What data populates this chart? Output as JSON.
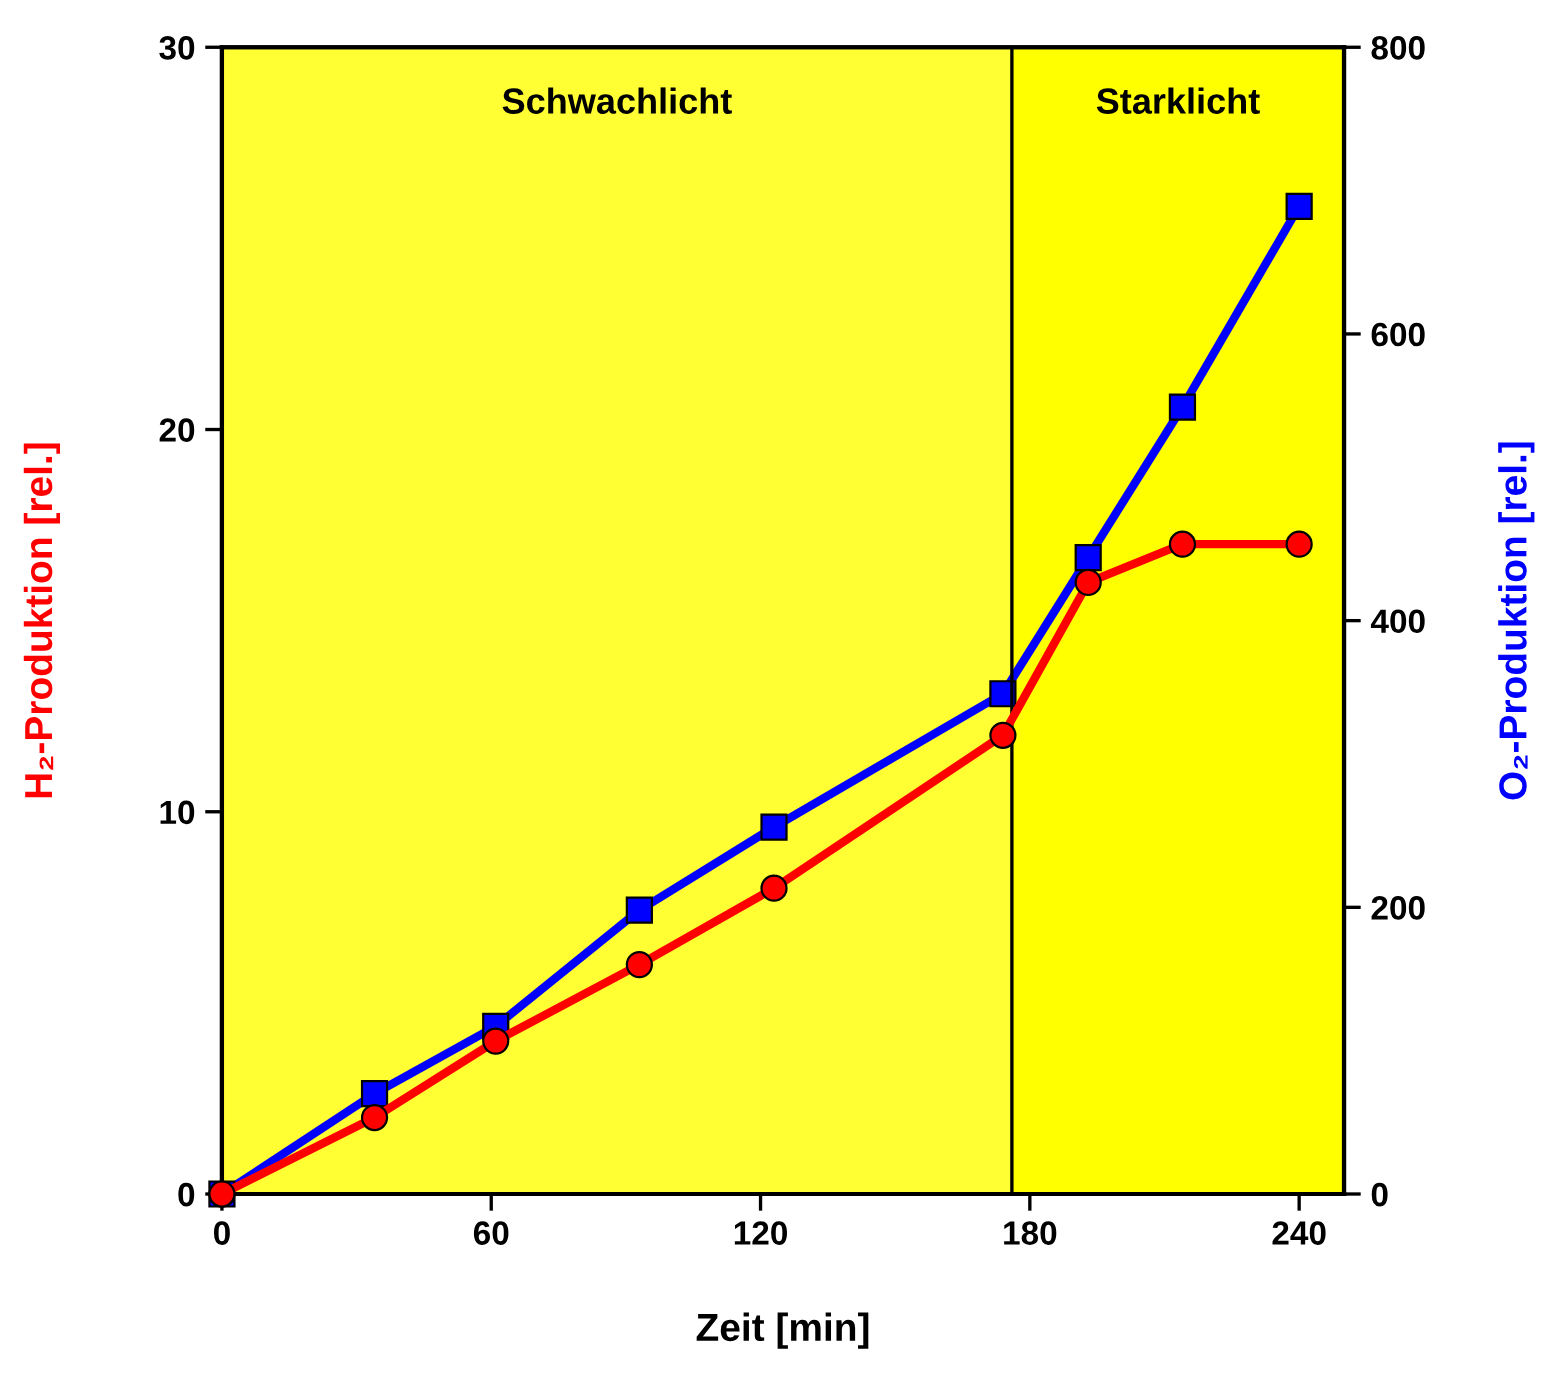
{
  "chart_data": {
    "type": "line",
    "xlabel": "Zeit [min]",
    "ylabel": "H₂-Produktion [rel.]",
    "y2label": "O₂-Produktion [rel.]",
    "xlim": [
      0,
      250
    ],
    "xticks": [
      0,
      60,
      120,
      180,
      240
    ],
    "ylim": [
      0,
      30
    ],
    "yticks": [
      0,
      10,
      20,
      30
    ],
    "y2lim": [
      0,
      800
    ],
    "y2ticks": [
      0,
      200,
      400,
      600,
      800
    ],
    "series": [
      {
        "color": "#ff0000",
        "marker": "circle",
        "x": [
          0,
          34,
          61,
          93,
          123,
          174,
          193,
          214,
          240
        ],
        "values": [
          0,
          2,
          4,
          6,
          8,
          12,
          16,
          17,
          17
        ]
      },
      {
        "color": "#0000ff",
        "marker": "square",
        "axis": "y2",
        "x": [
          0,
          34,
          61,
          93,
          123,
          174,
          193,
          214,
          240
        ],
        "values": [
          0,
          70,
          117,
          198,
          256,
          349,
          444,
          549,
          689
        ]
      }
    ],
    "bands": [
      {
        "axis": "x",
        "from": 0,
        "to": 176,
        "label": "Schwachlicht",
        "color": "#ffff33"
      },
      {
        "axis": "x",
        "from": 176,
        "to": 250,
        "label": "Starklicht",
        "color": "#ffff00"
      }
    ],
    "ref_lines": [
      {
        "axis": "x",
        "value": 176,
        "color": "#000000",
        "line_style": "solid"
      }
    ],
    "grid": false,
    "legend": false
  }
}
